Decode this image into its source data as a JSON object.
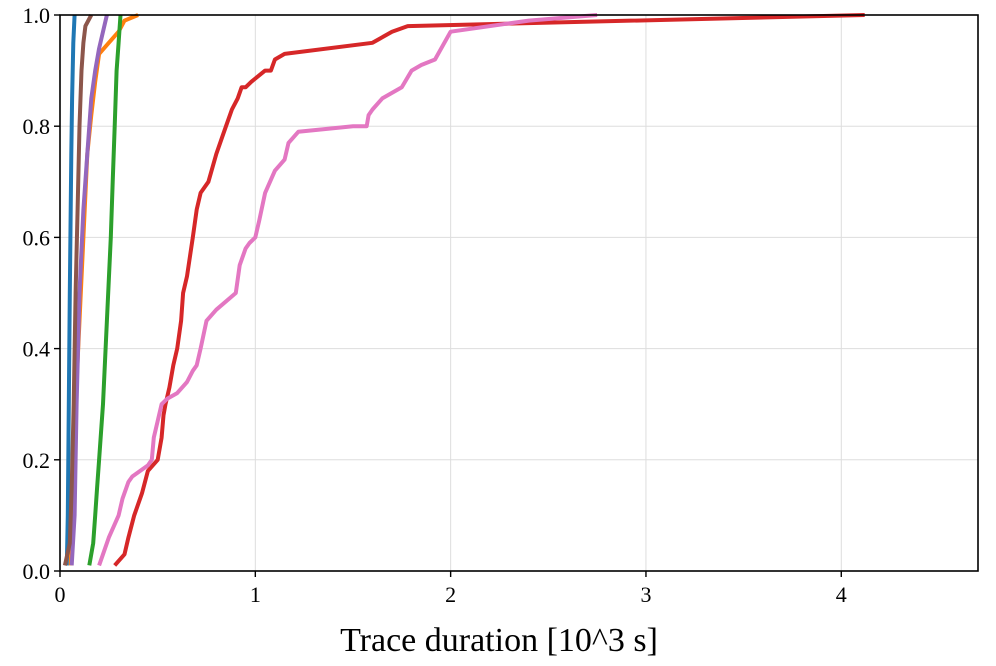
{
  "chart_data": {
    "type": "line",
    "title": "",
    "xlabel": "Trace duration [10^3 s]",
    "ylabel": "",
    "xlim": [
      0,
      4.7
    ],
    "ylim": [
      0,
      1.0
    ],
    "xticks": [
      0,
      1,
      2,
      3,
      4
    ],
    "yticks": [
      0.0,
      0.2,
      0.4,
      0.6,
      0.8,
      1.0
    ],
    "xtick_labels": [
      "0",
      "1",
      "2",
      "3",
      "4"
    ],
    "ytick_labels": [
      "0.0",
      "0.2",
      "0.4",
      "0.6",
      "0.8",
      "1.0"
    ],
    "grid": true,
    "series": [
      {
        "name": "blue",
        "color": "#1f77b4",
        "x": [
          0.035,
          0.04,
          0.045,
          0.05,
          0.055,
          0.058,
          0.062,
          0.068,
          0.075
        ],
        "y": [
          0.01,
          0.1,
          0.3,
          0.5,
          0.65,
          0.75,
          0.85,
          0.95,
          1.0
        ]
      },
      {
        "name": "orange",
        "color": "#ff7f0e",
        "x": [
          0.055,
          0.065,
          0.08,
          0.1,
          0.12,
          0.14,
          0.16,
          0.18,
          0.2,
          0.25,
          0.3,
          0.33,
          0.4
        ],
        "y": [
          0.01,
          0.1,
          0.3,
          0.45,
          0.6,
          0.75,
          0.82,
          0.88,
          0.93,
          0.95,
          0.97,
          0.99,
          1.0
        ]
      },
      {
        "name": "green",
        "color": "#2ca02c",
        "x": [
          0.15,
          0.17,
          0.18,
          0.19,
          0.2,
          0.22,
          0.24,
          0.26,
          0.27,
          0.28,
          0.29,
          0.3,
          0.31
        ],
        "y": [
          0.01,
          0.05,
          0.1,
          0.15,
          0.2,
          0.3,
          0.45,
          0.6,
          0.7,
          0.8,
          0.9,
          0.95,
          1.0
        ]
      },
      {
        "name": "red",
        "color": "#d62728",
        "x": [
          0.28,
          0.33,
          0.35,
          0.38,
          0.42,
          0.45,
          0.5,
          0.52,
          0.53,
          0.54,
          0.56,
          0.58,
          0.6,
          0.62,
          0.63,
          0.65,
          0.68,
          0.7,
          0.72,
          0.76,
          0.8,
          0.83,
          0.85,
          0.88,
          0.91,
          0.93,
          0.95,
          0.98,
          1.05,
          1.08,
          1.1,
          1.15,
          1.6,
          1.7,
          1.78,
          4.12
        ],
        "y": [
          0.01,
          0.03,
          0.06,
          0.1,
          0.14,
          0.18,
          0.2,
          0.24,
          0.28,
          0.3,
          0.33,
          0.37,
          0.4,
          0.45,
          0.5,
          0.53,
          0.6,
          0.65,
          0.68,
          0.7,
          0.75,
          0.78,
          0.8,
          0.83,
          0.85,
          0.87,
          0.87,
          0.88,
          0.9,
          0.9,
          0.92,
          0.93,
          0.95,
          0.97,
          0.98,
          1.0
        ]
      },
      {
        "name": "purple",
        "color": "#9467bd",
        "x": [
          0.06,
          0.075,
          0.085,
          0.1,
          0.12,
          0.14,
          0.15,
          0.16,
          0.18,
          0.2,
          0.22,
          0.24
        ],
        "y": [
          0.01,
          0.1,
          0.3,
          0.5,
          0.65,
          0.75,
          0.8,
          0.85,
          0.9,
          0.94,
          0.97,
          1.0
        ]
      },
      {
        "name": "brown",
        "color": "#8c564b",
        "x": [
          0.025,
          0.05,
          0.06,
          0.07,
          0.08,
          0.09,
          0.1,
          0.11,
          0.12,
          0.13,
          0.16
        ],
        "y": [
          0.01,
          0.05,
          0.15,
          0.3,
          0.5,
          0.65,
          0.8,
          0.9,
          0.95,
          0.98,
          1.0
        ]
      },
      {
        "name": "pink",
        "color": "#e377c2",
        "x": [
          0.2,
          0.22,
          0.25,
          0.3,
          0.32,
          0.35,
          0.37,
          0.45,
          0.47,
          0.48,
          0.5,
          0.52,
          0.55,
          0.6,
          0.65,
          0.68,
          0.7,
          0.72,
          0.75,
          0.8,
          0.9,
          0.92,
          0.95,
          0.97,
          1.0,
          1.02,
          1.05,
          1.1,
          1.15,
          1.17,
          1.22,
          1.5,
          1.57,
          1.58,
          1.6,
          1.65,
          1.75,
          1.8,
          1.85,
          1.92,
          2.0,
          2.4,
          2.75
        ],
        "y": [
          0.01,
          0.03,
          0.06,
          0.1,
          0.13,
          0.16,
          0.17,
          0.19,
          0.2,
          0.24,
          0.27,
          0.3,
          0.31,
          0.32,
          0.34,
          0.36,
          0.37,
          0.4,
          0.45,
          0.47,
          0.5,
          0.55,
          0.58,
          0.59,
          0.6,
          0.63,
          0.68,
          0.72,
          0.74,
          0.77,
          0.79,
          0.8,
          0.8,
          0.82,
          0.83,
          0.85,
          0.87,
          0.9,
          0.91,
          0.92,
          0.97,
          0.99,
          1.0
        ]
      }
    ]
  }
}
